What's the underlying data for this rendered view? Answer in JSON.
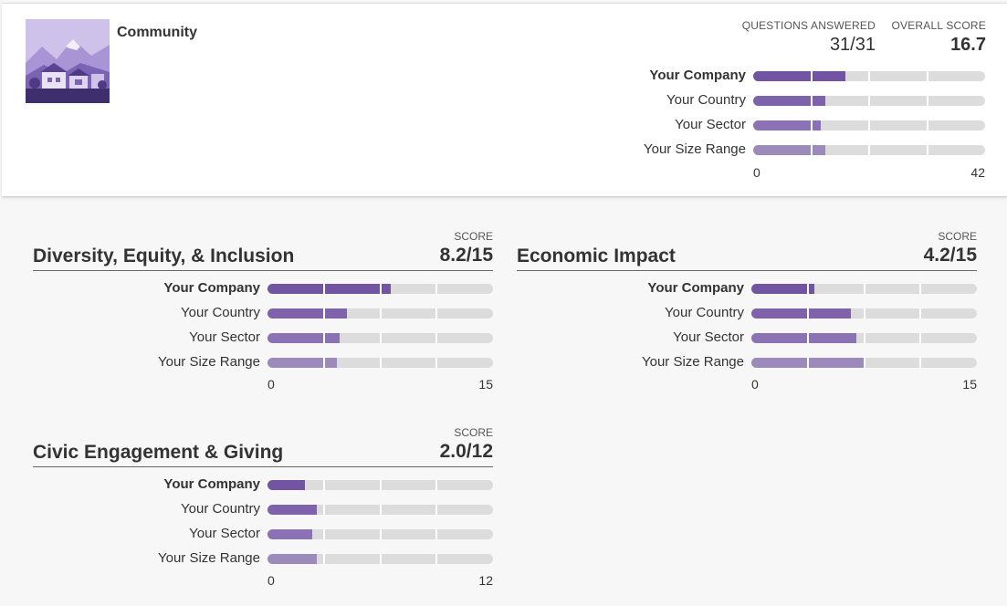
{
  "colors": {
    "company": "#7254a3",
    "country": "#7f62ac",
    "sector": "#8a72b4",
    "size_range": "#9c8abb",
    "track": "#dcdcdc"
  },
  "header": {
    "title": "Community",
    "questions_answered_label": "QUESTIONS ANSWERED",
    "questions_answered_value": "31/31",
    "overall_score_label": "OVERALL SCORE",
    "overall_score_value": "16.7",
    "axis_min": "0",
    "axis_max": "42",
    "max": 42,
    "rows": [
      {
        "label": "Your Company",
        "value": 16.7,
        "bold": true
      },
      {
        "label": "Your Country",
        "value": 13.0
      },
      {
        "label": "Your Sector",
        "value": 12.3
      },
      {
        "label": "Your Size Range",
        "value": 13.0
      }
    ]
  },
  "sections": [
    {
      "title": "Diversity, Equity, & Inclusion",
      "score_label": "SCORE",
      "score": "8.2/15",
      "axis_min": "0",
      "axis_max": "15",
      "max": 15,
      "rows": [
        {
          "label": "Your Company",
          "value": 8.2,
          "bold": true
        },
        {
          "label": "Your Country",
          "value": 5.3
        },
        {
          "label": "Your Sector",
          "value": 4.8
        },
        {
          "label": "Your Size Range",
          "value": 4.6
        }
      ]
    },
    {
      "title": "Economic Impact",
      "score_label": "SCORE",
      "score": "4.2/15",
      "axis_min": "0",
      "axis_max": "15",
      "max": 15,
      "rows": [
        {
          "label": "Your Company",
          "value": 4.2,
          "bold": true
        },
        {
          "label": "Your Country",
          "value": 6.6
        },
        {
          "label": "Your Sector",
          "value": 7.0
        },
        {
          "label": "Your Size Range",
          "value": 7.5
        }
      ]
    },
    {
      "title": "Civic Engagement & Giving",
      "score_label": "SCORE",
      "score": "2.0/12",
      "axis_min": "0",
      "axis_max": "12",
      "max": 12,
      "rows": [
        {
          "label": "Your Company",
          "value": 2.0,
          "bold": true
        },
        {
          "label": "Your Country",
          "value": 2.6
        },
        {
          "label": "Your Sector",
          "value": 2.4
        },
        {
          "label": "Your Size Range",
          "value": 2.6
        }
      ]
    }
  ]
}
